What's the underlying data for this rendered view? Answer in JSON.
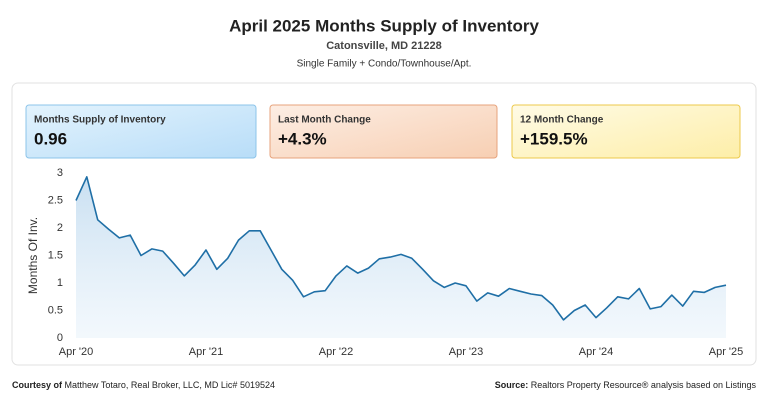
{
  "title": "April 2025 Months Supply of Inventory",
  "subtitle": "Catonsville, MD 21228",
  "subtitle2": "Single Family + Condo/Townhouse/Apt.",
  "cards": [
    {
      "label": "Months Supply of Inventory",
      "value": "0.96"
    },
    {
      "label": "Last Month Change",
      "value": "+4.3%"
    },
    {
      "label": "12 Month Change",
      "value": "+159.5%"
    }
  ],
  "chart_data": {
    "type": "line",
    "ylabel": "Months Of Inv.",
    "categories": [
      "Apr '20",
      null,
      null,
      null,
      null,
      null,
      null,
      null,
      null,
      null,
      null,
      null,
      "Apr '21",
      null,
      null,
      null,
      null,
      null,
      null,
      null,
      null,
      null,
      null,
      null,
      "Apr '22",
      null,
      null,
      null,
      null,
      null,
      null,
      null,
      null,
      null,
      null,
      null,
      "Apr '23",
      null,
      null,
      null,
      null,
      null,
      null,
      null,
      null,
      null,
      null,
      null,
      "Apr '24",
      null,
      null,
      null,
      null,
      null,
      null,
      null,
      null,
      null,
      null,
      null,
      "Apr '25"
    ],
    "series": [
      {
        "name": "Months Of Inv.",
        "color": "#1f6fa6",
        "values": [
          2.5,
          2.93,
          2.15,
          1.98,
          1.82,
          1.87,
          1.5,
          1.62,
          1.58,
          1.36,
          1.13,
          1.33,
          1.6,
          1.25,
          1.45,
          1.78,
          1.95,
          1.95,
          1.6,
          1.25,
          1.05,
          0.75,
          0.84,
          0.86,
          1.13,
          1.31,
          1.18,
          1.27,
          1.44,
          1.47,
          1.52,
          1.45,
          1.25,
          1.04,
          0.92,
          1.0,
          0.95,
          0.67,
          0.82,
          0.76,
          0.9,
          0.85,
          0.8,
          0.77,
          0.6,
          0.33,
          0.5,
          0.6,
          0.37,
          0.55,
          0.75,
          0.71,
          0.9,
          0.53,
          0.57,
          0.78,
          0.58,
          0.85,
          0.83,
          0.92,
          0.96
        ]
      }
    ],
    "ylim": [
      0,
      3
    ],
    "yticks": [
      0,
      0.5,
      1,
      1.5,
      2,
      2.5,
      3
    ],
    "grid": false
  },
  "footer": {
    "left_bold": "Courtesy of",
    "left": "Matthew Totaro, Real Broker, LLC, MD Lic# 5019524",
    "right_bold": "Source:",
    "right": "Realtors Property Resource® analysis based on Listings"
  }
}
